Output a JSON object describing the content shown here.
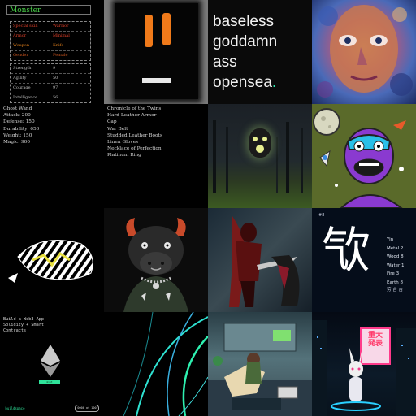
{
  "monster": {
    "title": "Monster",
    "attributes": [
      {
        "key": "Special skill",
        "value": "Warrior",
        "color": "#e0402a"
      },
      {
        "key": "Armor",
        "value": "Minimal",
        "color": "#e0402a"
      },
      {
        "key": "Weapon",
        "value": "Knife",
        "color": "#d87a1a"
      },
      {
        "key": "Gender",
        "value": "Female",
        "color": "#c8541e"
      }
    ],
    "stats": [
      {
        "key": "Strength",
        "value": "9"
      },
      {
        "key": "Agility",
        "value": "50"
      },
      {
        "key": "Courage",
        "value": "97"
      },
      {
        "key": "Intelligence",
        "value": "56"
      }
    ]
  },
  "opensea": {
    "line1": "baseless",
    "line2": "goddamn",
    "line3": "ass",
    "line4": "opensea",
    "dot": "."
  },
  "weapon_stats": [
    "Ghost Wand",
    "Attack: 200",
    "Defense: 150",
    "Durability: 650",
    "Weight: 150",
    "Magic: 900"
  ],
  "loot_list": [
    "Chronicle of the Twins",
    "Hard Leather Armor",
    "Cap",
    "War Belt",
    "Studded Leather Boots",
    "Linen Gloves",
    "Necklace of Perfection",
    "Platinum Ring"
  ],
  "kanji": {
    "index": "#8",
    "glyph": "㰟",
    "elements": [
      "Yin",
      "Metal 2",
      "Wood 8",
      "Water 1",
      "Fire 3",
      "Earth 8"
    ],
    "footer": "劳 吉 吉"
  },
  "web3": {
    "heading": "Build a Web3 App: Solidity + Smart Contracts",
    "badge": "mint",
    "footer_left": "_buildspace",
    "footer_right": "0000 of 100"
  },
  "neon_sign": "重大 発表",
  "colors": {
    "accent_green": "#2ee6b0",
    "monster_title": "#4ad04a"
  }
}
